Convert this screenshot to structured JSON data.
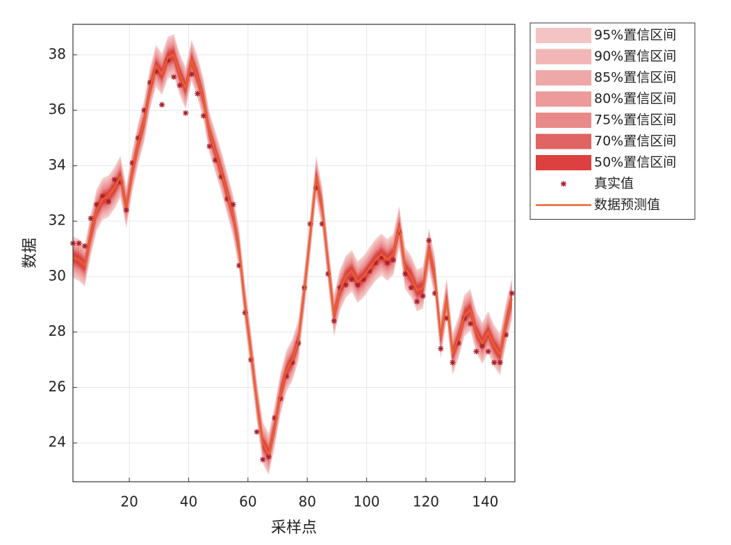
{
  "chart_data": {
    "type": "line",
    "xlabel": "采样点",
    "ylabel": "数据",
    "x": [
      1,
      3,
      5,
      7,
      9,
      11,
      13,
      15,
      17,
      19,
      21,
      23,
      25,
      27,
      29,
      31,
      33,
      35,
      37,
      39,
      41,
      43,
      45,
      47,
      49,
      51,
      53,
      55,
      57,
      59,
      61,
      63,
      65,
      67,
      69,
      71,
      73,
      75,
      77,
      79,
      81,
      83,
      85,
      87,
      89,
      91,
      93,
      95,
      97,
      99,
      101,
      103,
      105,
      107,
      109,
      111,
      113,
      115,
      117,
      119,
      121,
      123,
      125,
      127,
      129,
      131,
      133,
      135,
      137,
      139,
      141,
      143,
      145,
      147,
      149
    ],
    "intervals": [
      {
        "name": "95%置信区间",
        "half_width": 0.75,
        "color": "#f4c4c4"
      },
      {
        "name": "90%置信区间",
        "half_width": 0.65,
        "color": "#f2b6b6"
      },
      {
        "name": "85%置信区间",
        "half_width": 0.55,
        "color": "#efa8a8"
      },
      {
        "name": "80%置信区间",
        "half_width": 0.48,
        "color": "#ec9a9a"
      },
      {
        "name": "75%置信区间",
        "half_width": 0.4,
        "color": "#e88a8a"
      },
      {
        "name": "70%置信区间",
        "half_width": 0.3,
        "color": "#e06464"
      },
      {
        "name": "50%置信区间",
        "half_width": 0.2,
        "color": "#dc4040"
      }
    ],
    "series": [
      {
        "name": "真实值",
        "color": "#a8202c",
        "marker": "*",
        "values": [
          31.2,
          31.2,
          31.1,
          32.1,
          32.6,
          32.9,
          32.7,
          33.5,
          33.4,
          32.4,
          34.1,
          35.0,
          36.0,
          37.0,
          37.4,
          36.2,
          37.8,
          37.2,
          36.9,
          35.9,
          37.3,
          36.6,
          35.8,
          34.7,
          34.2,
          33.6,
          32.8,
          32.6,
          30.4,
          28.7,
          27.0,
          24.4,
          23.4,
          23.5,
          24.9,
          25.6,
          26.4,
          26.9,
          27.6,
          29.6,
          31.9,
          33.2,
          31.9,
          30.1,
          28.4,
          29.6,
          29.7,
          29.9,
          29.7,
          29.9,
          30.2,
          30.5,
          30.7,
          30.5,
          30.6,
          31.6,
          30.1,
          29.6,
          29.1,
          29.3,
          31.3,
          29.4,
          27.4,
          28.5,
          26.9,
          27.6,
          28.5,
          28.3,
          27.3,
          27.5,
          27.3,
          26.9,
          26.9,
          27.9,
          29.4
        ]
      },
      {
        "name": "数据预测值",
        "color": "#e8622a",
        "values": [
          30.7,
          30.6,
          30.4,
          31.5,
          32.4,
          32.8,
          32.9,
          33.2,
          33.6,
          32.5,
          33.8,
          34.8,
          35.6,
          36.8,
          37.6,
          37.3,
          37.9,
          38.0,
          37.3,
          36.8,
          37.8,
          37.2,
          36.4,
          35.2,
          34.5,
          33.8,
          33.0,
          32.2,
          31.0,
          29.0,
          27.3,
          25.5,
          24.0,
          23.6,
          24.6,
          25.8,
          26.6,
          27.0,
          27.7,
          29.5,
          31.5,
          33.6,
          32.5,
          30.5,
          28.6,
          29.5,
          30.0,
          30.2,
          29.8,
          30.0,
          30.3,
          30.6,
          30.8,
          30.6,
          30.8,
          31.8,
          30.3,
          30.0,
          29.5,
          29.6,
          31.0,
          30.0,
          27.8,
          29.2,
          27.2,
          27.8,
          28.6,
          28.8,
          28.0,
          27.6,
          28.0,
          27.5,
          27.2,
          28.3,
          29.2
        ]
      }
    ],
    "xlim": [
      1,
      150
    ],
    "ylim": [
      22.6,
      39.1
    ],
    "xticks": [
      20,
      40,
      60,
      80,
      100,
      120,
      140
    ],
    "yticks": [
      24,
      26,
      28,
      30,
      32,
      34,
      36,
      38
    ],
    "grid": true,
    "legend": "outside-right"
  }
}
